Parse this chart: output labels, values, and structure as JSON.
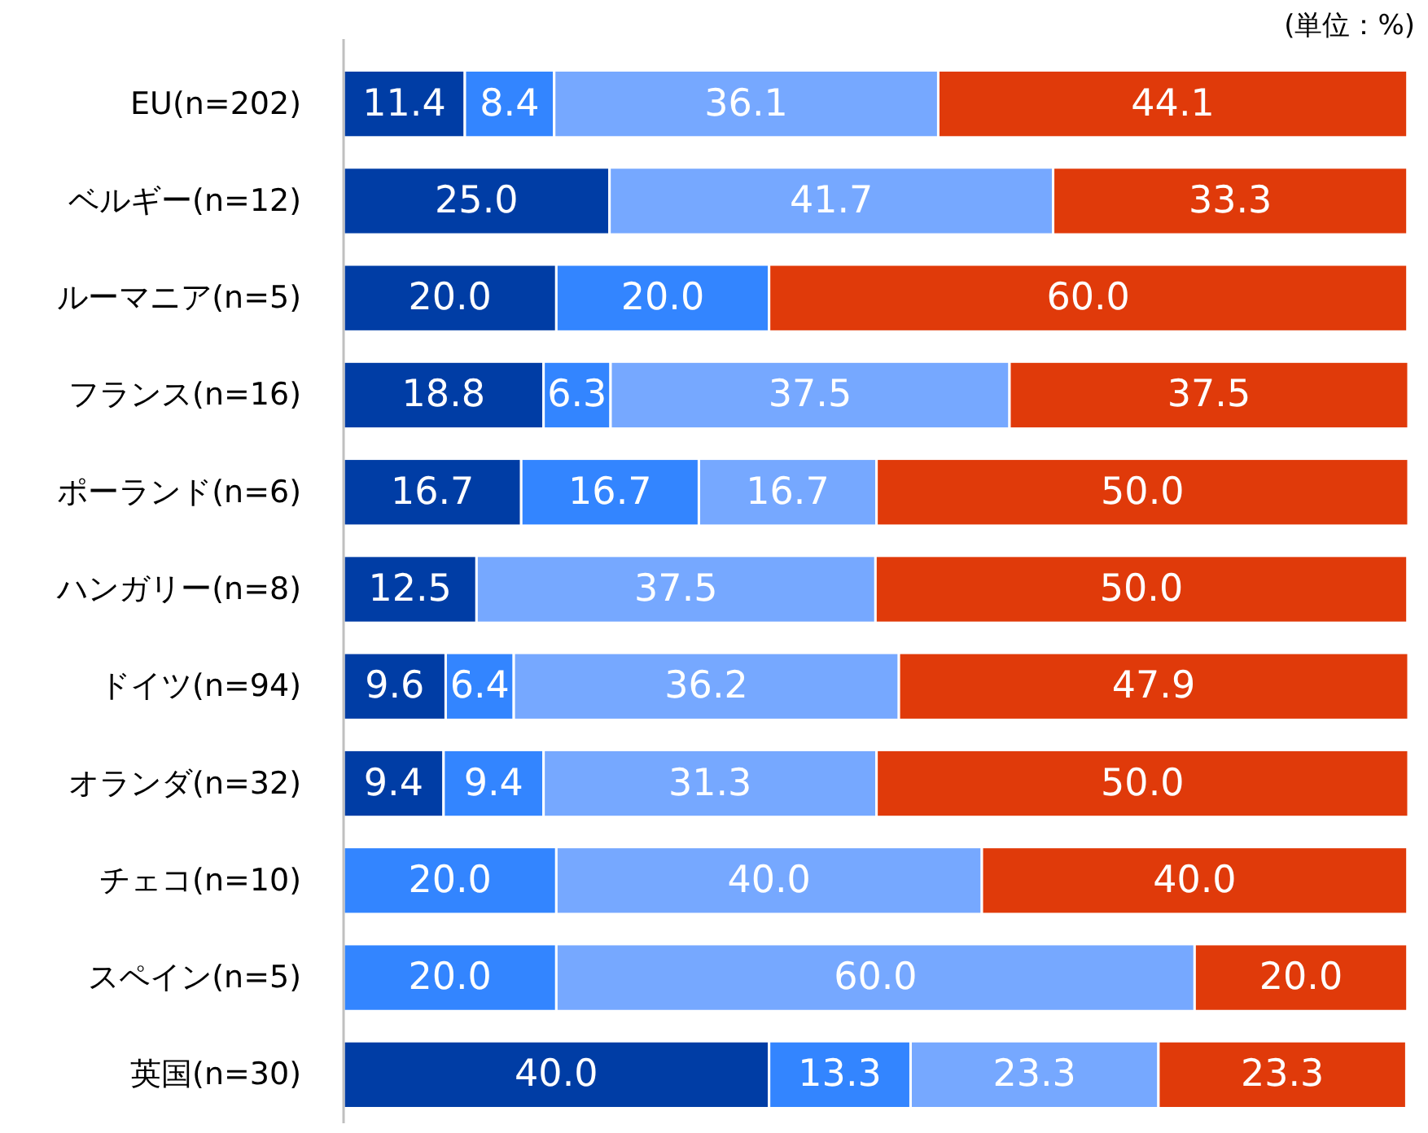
{
  "chart_data": {
    "type": "bar",
    "orientation": "horizontal",
    "stacked": true,
    "annotations": [
      "(単位：%)"
    ],
    "categories": [
      "EU(n=202)",
      "ベルギー(n=12)",
      "ルーマニア(n=5)",
      "フランス(n=16)",
      "ポーランド(n=6)",
      "ハンガリー(n=8)",
      "ドイツ(n=94)",
      "オランダ(n=32)",
      "チェコ(n=10)",
      "スペイン(n=5)",
      "英国(n=30)"
    ],
    "series": [
      {
        "color": "#003da5",
        "values": [
          11.4,
          25.0,
          20.0,
          18.8,
          16.7,
          12.5,
          9.6,
          9.4,
          null,
          null,
          40.0
        ],
        "value_labels": [
          "11.4",
          "25.0",
          "20.0",
          "18.8",
          "16.7",
          "12.5",
          "9.6",
          "9.4",
          null,
          null,
          "40.0"
        ]
      },
      {
        "color": "#3385ff",
        "values": [
          8.4,
          null,
          20.0,
          6.3,
          16.7,
          null,
          6.4,
          9.4,
          20.0,
          20.0,
          13.3
        ],
        "value_labels": [
          "8.4",
          null,
          "20.0",
          "6.3",
          "16.7",
          null,
          "6.4",
          "9.4",
          "20.0",
          "20.0",
          "13.3"
        ]
      },
      {
        "color": "#76a8ff",
        "values": [
          36.1,
          41.7,
          null,
          37.5,
          16.7,
          37.5,
          36.2,
          31.3,
          40.0,
          60.0,
          23.3
        ],
        "value_labels": [
          "36.1",
          "41.7",
          null,
          "37.5",
          "16.7",
          "37.5",
          "36.2",
          "31.3",
          "40.0",
          "60.0",
          "23.3"
        ]
      },
      {
        "color": "#e03a0a",
        "values": [
          44.1,
          33.3,
          60.0,
          37.5,
          50.0,
          50.0,
          47.9,
          50.0,
          40.0,
          20.0,
          23.3
        ],
        "value_labels": [
          "44.1",
          "33.3",
          "60.0",
          "37.5",
          "50.0",
          "50.0",
          "47.9",
          "50.0",
          "40.0",
          "20.0",
          "23.3"
        ]
      }
    ]
  }
}
